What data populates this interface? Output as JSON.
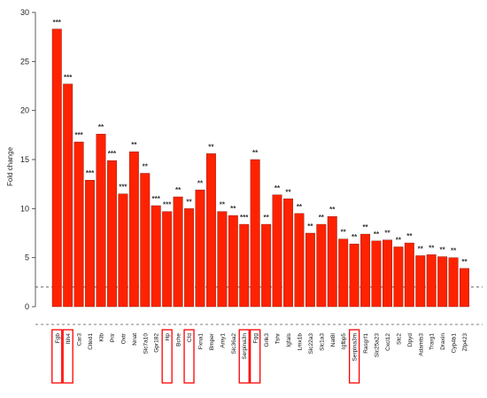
{
  "chart_data": {
    "type": "bar",
    "ylabel": "Fold change",
    "ylim": [
      0,
      30
    ],
    "yticks": [
      0,
      5,
      10,
      15,
      20,
      25,
      30
    ],
    "reference_line": 2,
    "bar_color": "#ff2200",
    "highlight_color": "#ff0000",
    "categories": [
      "Fgb",
      "Itih4",
      "Car3",
      "Cited1",
      "Klb",
      "Prlr",
      "Oxtr",
      "Nnat",
      "Slc7a10",
      "Gpr182",
      "Hp",
      "Bche",
      "Cfd",
      "Fxna1",
      "Bmper",
      "Amy1",
      "Slc36a2",
      "Serpina3n",
      "Fgg",
      "Grik3",
      "Tshr",
      "Igfals",
      "Lmx1b",
      "Slc22a3",
      "Slc1a3",
      "Nat8l",
      "Igfbp5",
      "Serpina3m",
      "Rasgrf1",
      "Slc25a23",
      "Cxcl12",
      "Stc2",
      "Dpyd",
      "Adamts3",
      "Trarg1",
      "Draxin",
      "Cyp4b1",
      "Zfp423"
    ],
    "values": [
      28.3,
      22.7,
      16.8,
      12.9,
      17.6,
      14.9,
      11.5,
      15.8,
      13.6,
      10.3,
      9.7,
      11.2,
      10.0,
      11.9,
      15.6,
      9.7,
      9.3,
      8.4,
      15.0,
      8.4,
      11.4,
      11.0,
      9.5,
      7.5,
      8.4,
      9.2,
      6.9,
      6.4,
      7.4,
      6.7,
      6.8,
      6.1,
      6.5,
      5.2,
      5.3,
      5.1,
      5.0,
      3.9
    ],
    "significance": [
      "***",
      "***",
      "***",
      "***",
      "**",
      "***",
      "***",
      "**",
      "**",
      "***",
      "***",
      "**",
      "**",
      "**",
      "**",
      "**",
      "**",
      "***",
      "**",
      "**",
      "**",
      "**",
      "**",
      "**",
      "**",
      "**",
      "**",
      "**",
      "**",
      "**",
      "**",
      "**",
      "**",
      "**",
      "**",
      "**",
      "**",
      "**"
    ],
    "highlighted": [
      "Fgb",
      "Itih4",
      "Hp",
      "Cfd",
      "Serpina3n",
      "Fgg",
      "Serpina3m"
    ]
  }
}
